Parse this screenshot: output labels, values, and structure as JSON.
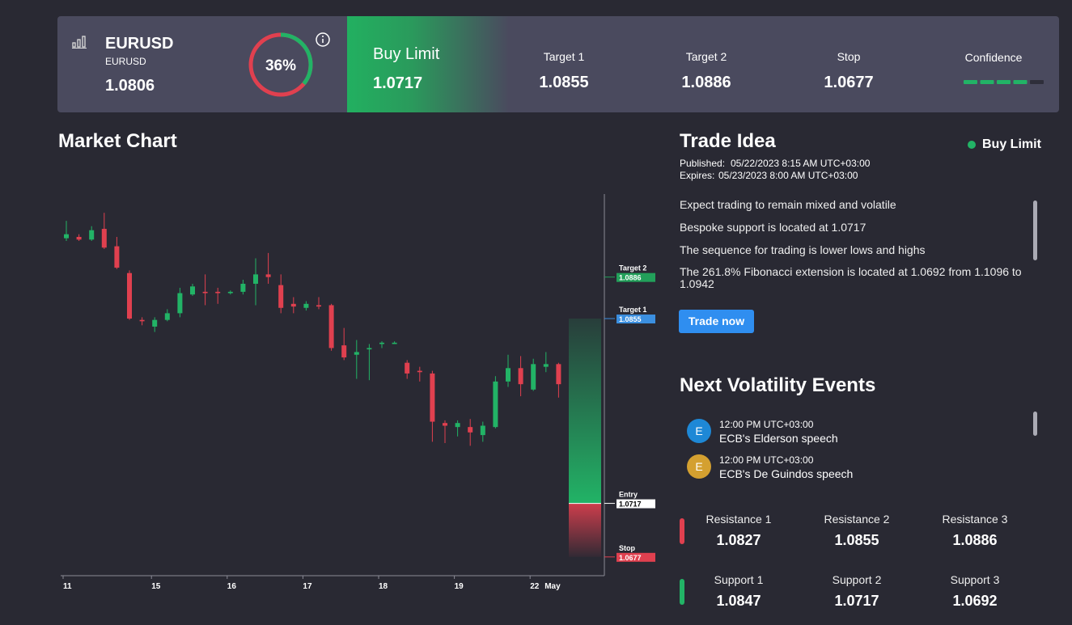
{
  "header": {
    "symbol": "EURUSD",
    "symbol_sub": "EURUSD",
    "price": "1.0806",
    "gauge": {
      "value": 36,
      "label": "36%"
    },
    "order": {
      "label": "Buy Limit",
      "value": "1.0717"
    },
    "stats": [
      {
        "label": "Target 1",
        "value": "1.0855"
      },
      {
        "label": "Target 2",
        "value": "1.0886"
      },
      {
        "label": "Stop",
        "value": "1.0677"
      }
    ],
    "confidence": {
      "label": "Confidence",
      "segments": 5,
      "filled": 4
    }
  },
  "chart_data": {
    "type": "candlestick",
    "title": "Market Chart",
    "categories": [
      "11",
      null,
      null,
      null,
      null,
      null,
      null,
      "15",
      null,
      null,
      null,
      null,
      null,
      "16",
      null,
      null,
      null,
      null,
      null,
      "17",
      null,
      null,
      null,
      null,
      null,
      "18",
      null,
      null,
      null,
      null,
      null,
      "19",
      null,
      null,
      null,
      null,
      null,
      "22",
      null,
      null
    ],
    "month_label": "May",
    "open": [
      1.0915,
      1.0916,
      1.0914,
      1.0922,
      1.0909,
      1.0889,
      1.0854,
      1.0849,
      1.0854,
      1.0859,
      1.0873,
      1.0875,
      1.0875,
      1.0874,
      1.0875,
      1.0881,
      1.0888,
      1.088,
      1.0866,
      1.0863,
      1.0865,
      1.0865,
      1.0835,
      1.0828,
      1.0832,
      1.0836,
      1.0836,
      1.0822,
      1.0816,
      1.0814,
      1.0777,
      1.0774,
      1.0774,
      1.0768,
      1.0774,
      1.0808,
      1.0818,
      1.0802,
      1.0819,
      1.0821
    ],
    "high": [
      1.0928,
      1.0918,
      1.0924,
      1.0934,
      1.0916,
      1.0891,
      1.0856,
      1.0856,
      1.0862,
      1.0878,
      1.0881,
      1.0888,
      1.0878,
      1.0876,
      1.0884,
      1.09,
      1.0904,
      1.0888,
      1.0871,
      1.0868,
      1.0871,
      1.0866,
      1.0848,
      1.0839,
      1.0836,
      1.0838,
      1.0838,
      1.0824,
      1.0819,
      1.0816,
      1.0779,
      1.0779,
      1.078,
      1.0778,
      1.0812,
      1.0828,
      1.0827,
      1.0825,
      1.083,
      1.0822
    ],
    "low": [
      1.0913,
      1.0913,
      1.0913,
      1.0907,
      1.0892,
      1.0854,
      1.085,
      1.0845,
      1.0853,
      1.0856,
      1.0872,
      1.0865,
      1.0866,
      1.0873,
      1.0873,
      1.0865,
      1.0881,
      1.0859,
      1.0859,
      1.0861,
      1.0862,
      1.0831,
      1.0824,
      1.081,
      1.0809,
      1.0833,
      1.0836,
      1.081,
      1.0808,
      1.0763,
      1.0762,
      1.0767,
      1.076,
      1.0763,
      1.0773,
      1.0804,
      1.0797,
      1.0801,
      1.0815,
      1.0796
    ],
    "close": [
      1.0918,
      1.0914,
      1.0921,
      1.0908,
      1.0893,
      1.0855,
      1.0853,
      1.0854,
      1.0859,
      1.0874,
      1.0879,
      1.0874,
      1.0874,
      1.0875,
      1.0881,
      1.0888,
      1.0886,
      1.0863,
      1.0864,
      1.0866,
      1.0864,
      1.0833,
      1.0826,
      1.083,
      1.0833,
      1.0837,
      1.0837,
      1.0814,
      1.0815,
      1.0778,
      1.0775,
      1.0777,
      1.077,
      1.0775,
      1.0808,
      1.0818,
      1.0806,
      1.0821,
      1.0821,
      1.0806
    ],
    "up_color": "#22b366",
    "down_color": "#e0404f",
    "ylim": [
      1.0663,
      1.0948
    ],
    "levels": [
      {
        "name": "Target 2",
        "value": 1.0886,
        "color": "#22a05a"
      },
      {
        "name": "Target 1",
        "value": 1.0855,
        "color": "#3b8fe0"
      },
      {
        "name": "Entry",
        "value": 1.0717,
        "color": "#ffffff"
      },
      {
        "name": "Stop",
        "value": 1.0677,
        "color": "#e0404f"
      }
    ]
  },
  "trade_idea": {
    "title": "Trade Idea",
    "status": "Buy Limit",
    "published_label": "Published:",
    "published": "05/22/2023 8:15 AM UTC+03:00",
    "expires_label": "Expires:",
    "expires": "05/23/2023 8:00 AM UTC+03:00",
    "paragraphs": [
      "Expect trading to remain mixed and volatile",
      "Bespoke support is located at 1.0717",
      "The sequence for trading is lower lows and highs",
      "The 261.8% Fibonacci extension is located at 1.0692 from 1.1096 to 1.0942"
    ],
    "button": "Trade now"
  },
  "events": {
    "title": "Next Volatility Events",
    "items": [
      {
        "icon": "E",
        "time": "12:00 PM UTC+03:00",
        "name": "ECB's Elderson speech",
        "color": "#1e88d6"
      },
      {
        "icon": "E",
        "time": "12:00 PM UTC+03:00",
        "name": "ECB's De Guindos speech",
        "color": "#d4a030"
      }
    ]
  },
  "key_levels": {
    "resistance": [
      {
        "label": "Resistance 1",
        "value": "1.0827"
      },
      {
        "label": "Resistance 2",
        "value": "1.0855"
      },
      {
        "label": "Resistance 3",
        "value": "1.0886"
      }
    ],
    "support": [
      {
        "label": "Support 1",
        "value": "1.0847"
      },
      {
        "label": "Support 2",
        "value": "1.0717"
      },
      {
        "label": "Support 3",
        "value": "1.0692"
      }
    ]
  }
}
